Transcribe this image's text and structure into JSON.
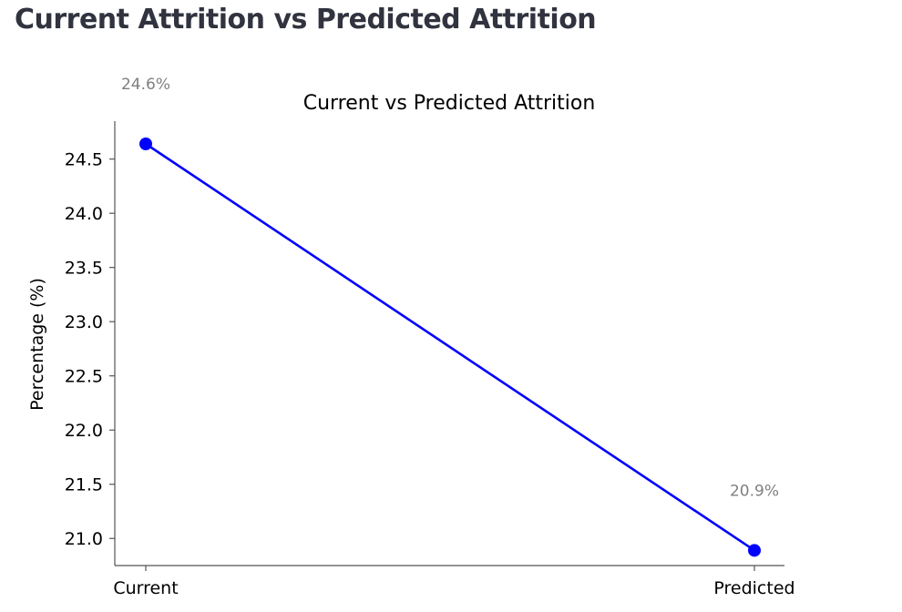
{
  "page": {
    "heading": "Current Attrition vs Predicted Attrition"
  },
  "chart_data": {
    "type": "line",
    "title": "Current vs Predicted Attrition",
    "xlabel": "",
    "ylabel": "Percentage (%)",
    "categories": [
      "Current",
      "Predicted"
    ],
    "values": [
      24.64,
      20.89
    ],
    "data_labels": [
      "24.6%",
      "20.9%"
    ],
    "ylim": [
      20.75,
      24.85
    ],
    "yticks": [
      21.0,
      21.5,
      22.0,
      22.5,
      23.0,
      23.5,
      24.0,
      24.5
    ],
    "ytick_labels": [
      "21.0",
      "21.5",
      "22.0",
      "22.5",
      "23.0",
      "23.5",
      "24.0",
      "24.5"
    ],
    "grid": false,
    "line_color": "#0000ff",
    "label_color": "#808080"
  }
}
